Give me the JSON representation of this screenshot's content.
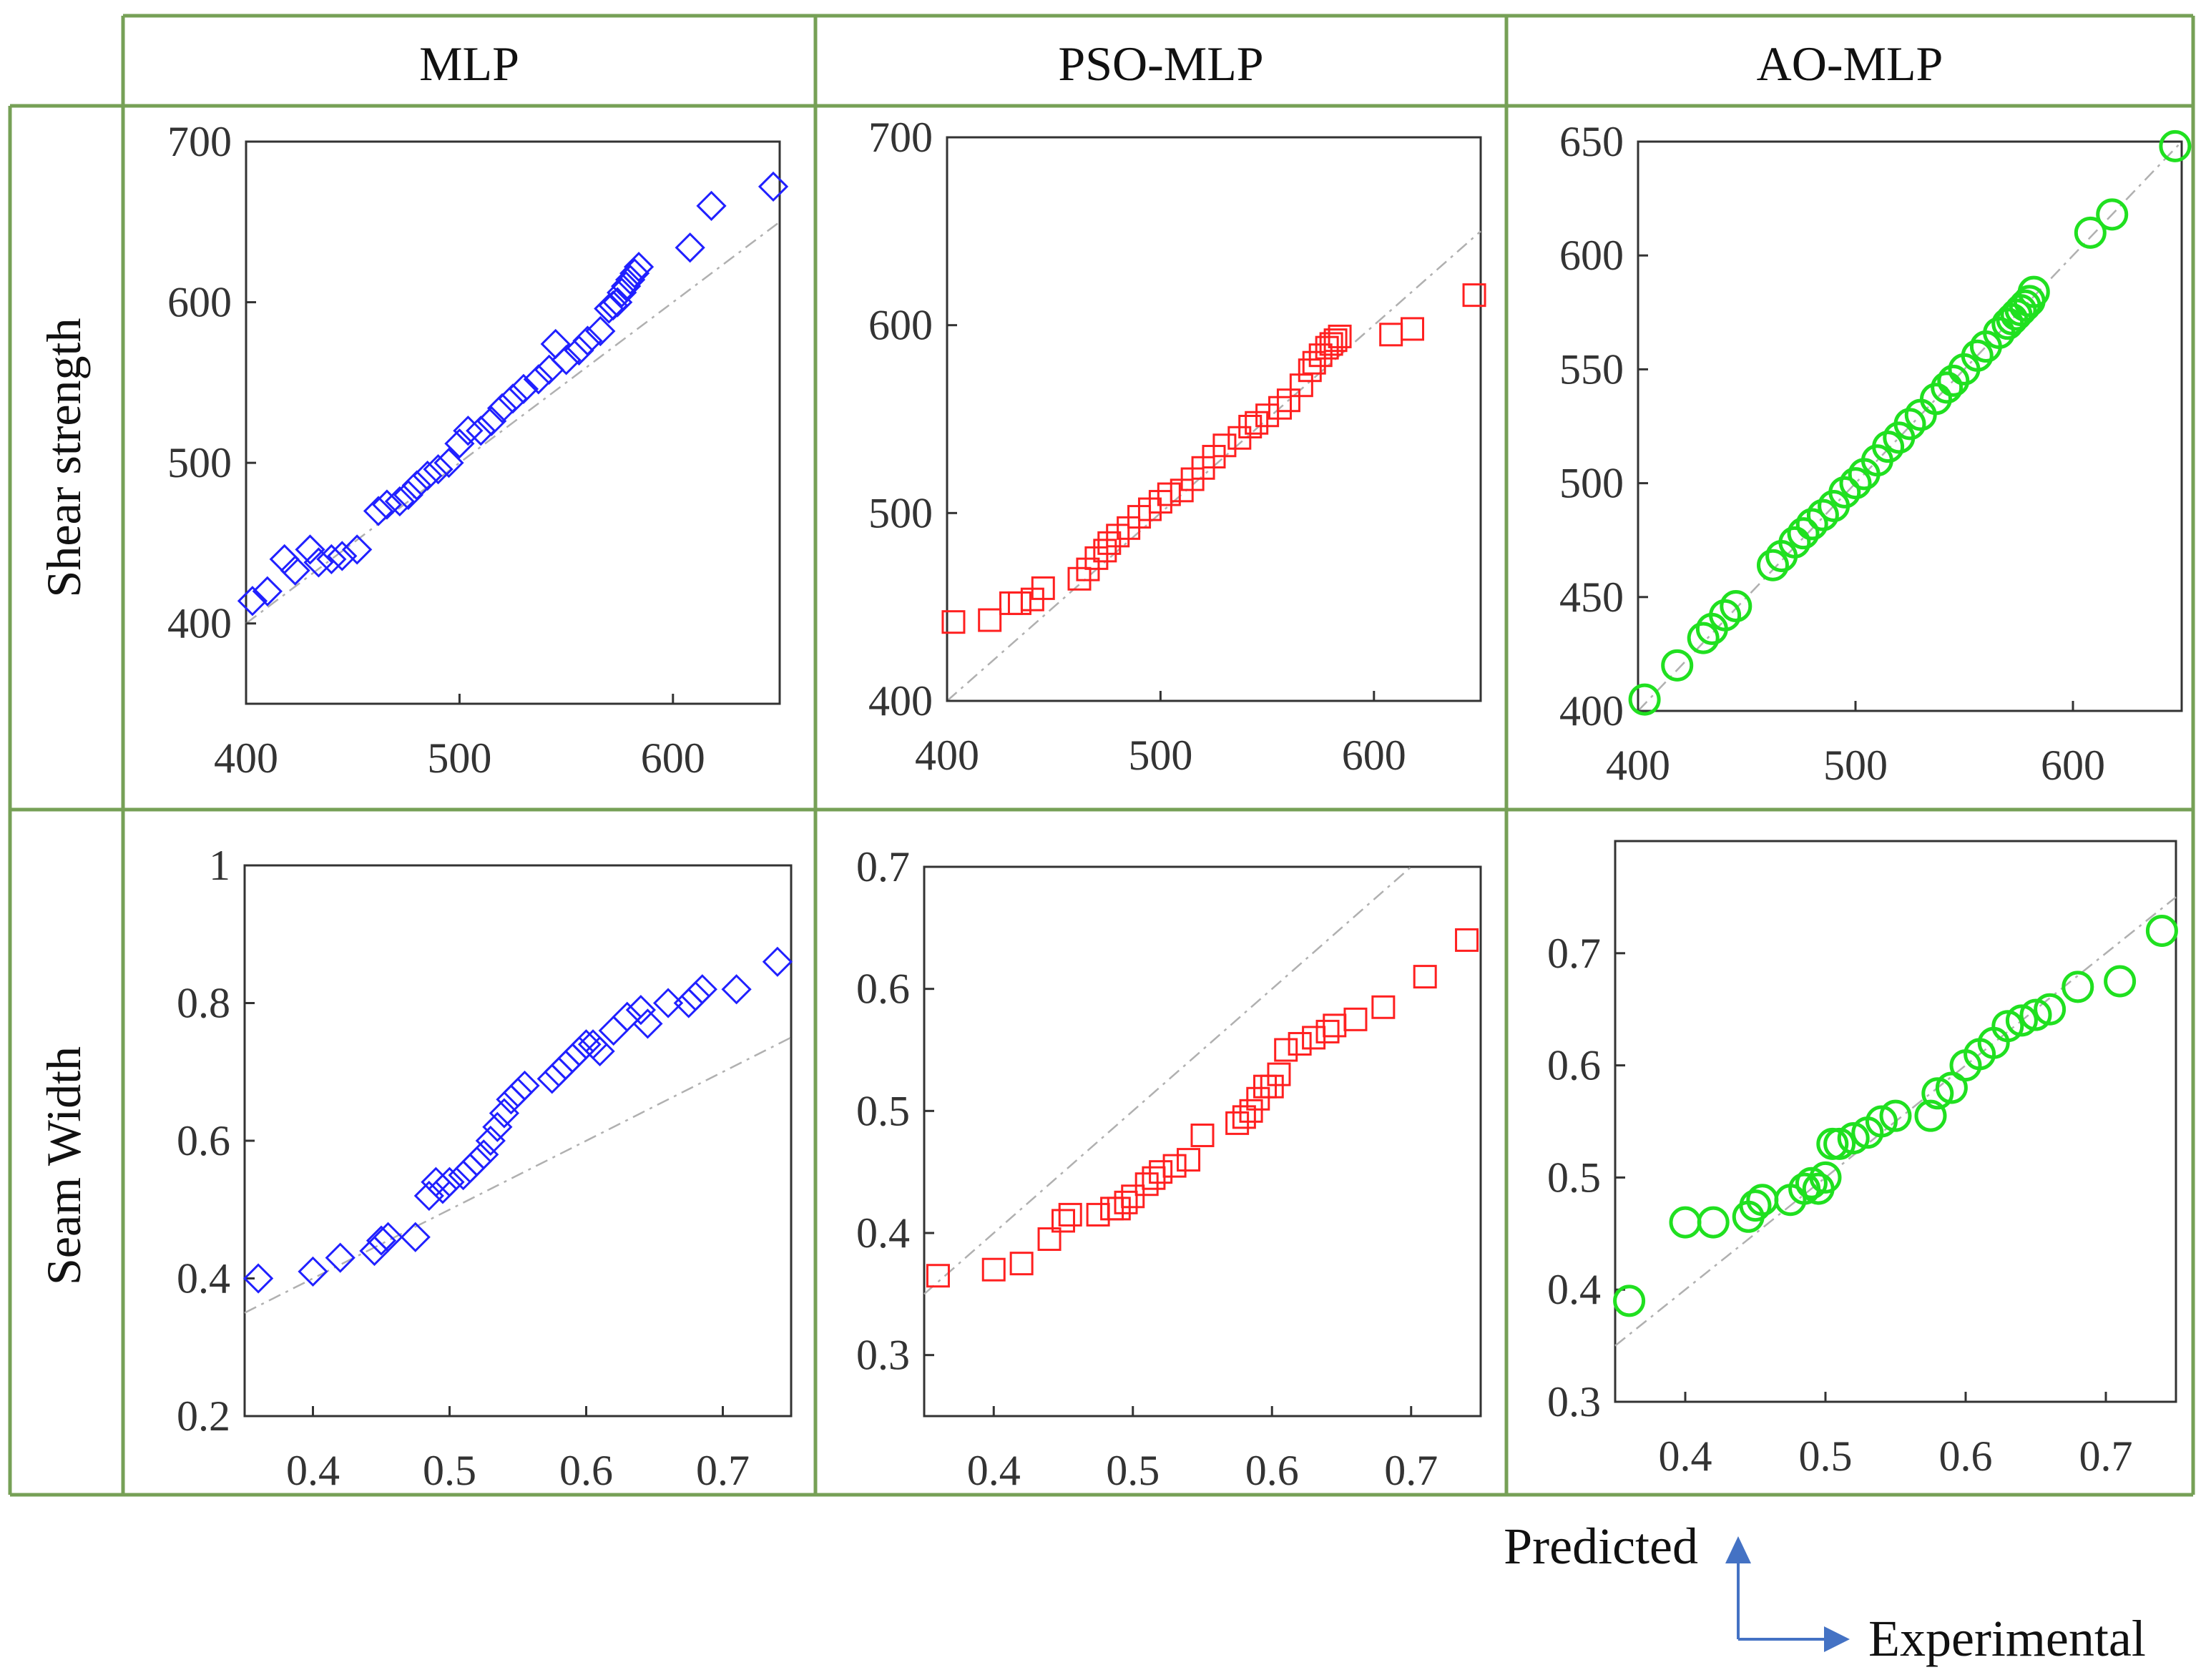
{
  "figure": {
    "columns": [
      "MLP",
      "PSO-MLP",
      "AO-MLP"
    ],
    "rows": [
      "Shear strength",
      "Seam Width"
    ],
    "legend": {
      "predicted_label": "Predicted",
      "experimental_label": "Experimental"
    },
    "colors": {
      "grid_border": "#76a056",
      "arrow": "#4472c4",
      "mlp": "#2020ff",
      "pso": "#ff2020",
      "ao": "#20e020",
      "diagonal": "#b0b0b0"
    }
  },
  "chart_data": [
    {
      "type": "scatter",
      "id": "mlp-shear",
      "title": "",
      "marker": "diamond",
      "color": "#2020ff",
      "xlim": [
        400,
        650
      ],
      "ylim": [
        350,
        700
      ],
      "xticks": [
        400,
        500,
        600
      ],
      "yticks": [
        400,
        500,
        600,
        700
      ],
      "x": [
        403,
        410,
        418,
        423,
        430,
        434,
        440,
        445,
        452,
        462,
        466,
        472,
        476,
        480,
        485,
        490,
        495,
        500,
        504,
        510,
        515,
        520,
        525,
        530,
        537,
        542,
        545,
        550,
        556,
        560,
        566,
        570,
        572,
        574,
        576,
        578,
        580,
        582,
        584,
        608,
        618,
        647
      ],
      "y": [
        414,
        420,
        440,
        433,
        446,
        438,
        440,
        442,
        446,
        470,
        474,
        476,
        480,
        486,
        492,
        496,
        500,
        512,
        520,
        520,
        526,
        534,
        540,
        546,
        552,
        558,
        574,
        564,
        570,
        576,
        582,
        596,
        598,
        600,
        606,
        610,
        614,
        618,
        622,
        634,
        660,
        672
      ]
    },
    {
      "type": "scatter",
      "id": "pso-shear",
      "title": "",
      "marker": "square",
      "color": "#ff2020",
      "xlim": [
        400,
        650
      ],
      "ylim": [
        400,
        700
      ],
      "xticks": [
        400,
        500,
        600
      ],
      "yticks": [
        400,
        500,
        600,
        700
      ],
      "x": [
        403,
        420,
        430,
        434,
        440,
        445,
        462,
        466,
        470,
        474,
        476,
        480,
        485,
        490,
        495,
        500,
        504,
        510,
        515,
        520,
        525,
        530,
        537,
        542,
        545,
        550,
        556,
        560,
        566,
        570,
        572,
        575,
        578,
        580,
        582,
        584,
        608,
        618,
        647
      ],
      "y": [
        442,
        443,
        452,
        452,
        454,
        460,
        465,
        470,
        476,
        480,
        484,
        488,
        492,
        498,
        502,
        506,
        510,
        512,
        518,
        524,
        530,
        536,
        540,
        546,
        548,
        552,
        556,
        560,
        568,
        576,
        580,
        584,
        588,
        590,
        592,
        594,
        595,
        598,
        616
      ]
    },
    {
      "type": "scatter",
      "id": "ao-shear",
      "title": "",
      "marker": "circle",
      "color": "#20e020",
      "xlim": [
        400,
        650
      ],
      "ylim": [
        400,
        650
      ],
      "xticks": [
        400,
        500,
        600
      ],
      "yticks": [
        400,
        450,
        500,
        550,
        600,
        650
      ],
      "x": [
        403,
        418,
        430,
        434,
        440,
        445,
        462,
        466,
        472,
        476,
        480,
        485,
        490,
        495,
        500,
        504,
        510,
        515,
        520,
        525,
        530,
        537,
        542,
        545,
        550,
        556,
        560,
        566,
        570,
        572,
        574,
        576,
        578,
        580,
        582,
        608,
        618,
        647
      ],
      "y": [
        405,
        420,
        432,
        436,
        442,
        446,
        464,
        468,
        474,
        478,
        482,
        486,
        490,
        496,
        500,
        504,
        510,
        516,
        520,
        526,
        530,
        537,
        542,
        545,
        550,
        556,
        560,
        566,
        570,
        572,
        574,
        576,
        578,
        580,
        584,
        610,
        618,
        648
      ]
    },
    {
      "type": "scatter",
      "id": "mlp-width",
      "title": "",
      "marker": "diamond",
      "color": "#2020ff",
      "xlim": [
        0.35,
        0.75
      ],
      "ylim": [
        0.2,
        1.0
      ],
      "xticks": [
        0.4,
        0.5,
        0.6,
        0.7
      ],
      "yticks": [
        0.2,
        0.4,
        0.6,
        0.8,
        1
      ],
      "x": [
        0.36,
        0.4,
        0.42,
        0.445,
        0.45,
        0.455,
        0.475,
        0.485,
        0.49,
        0.495,
        0.5,
        0.51,
        0.515,
        0.52,
        0.525,
        0.53,
        0.535,
        0.54,
        0.545,
        0.55,
        0.555,
        0.575,
        0.58,
        0.585,
        0.59,
        0.595,
        0.6,
        0.605,
        0.61,
        0.62,
        0.63,
        0.64,
        0.645,
        0.66,
        0.675,
        0.68,
        0.685,
        0.71,
        0.74
      ],
      "y": [
        0.4,
        0.41,
        0.43,
        0.44,
        0.455,
        0.46,
        0.46,
        0.52,
        0.54,
        0.53,
        0.54,
        0.55,
        0.56,
        0.57,
        0.58,
        0.6,
        0.62,
        0.64,
        0.66,
        0.67,
        0.68,
        0.69,
        0.7,
        0.71,
        0.72,
        0.73,
        0.74,
        0.74,
        0.73,
        0.76,
        0.78,
        0.79,
        0.77,
        0.8,
        0.8,
        0.81,
        0.82,
        0.82,
        0.86
      ]
    },
    {
      "type": "scatter",
      "id": "pso-width",
      "title": "",
      "marker": "square",
      "color": "#ff2020",
      "xlim": [
        0.35,
        0.75
      ],
      "ylim": [
        0.25,
        0.7
      ],
      "xticks": [
        0.4,
        0.5,
        0.6,
        0.7
      ],
      "yticks": [
        0.3,
        0.4,
        0.5,
        0.6,
        0.7
      ],
      "x": [
        0.36,
        0.4,
        0.42,
        0.44,
        0.45,
        0.455,
        0.475,
        0.485,
        0.49,
        0.495,
        0.5,
        0.51,
        0.515,
        0.52,
        0.53,
        0.54,
        0.55,
        0.575,
        0.58,
        0.585,
        0.59,
        0.595,
        0.6,
        0.605,
        0.61,
        0.62,
        0.63,
        0.64,
        0.645,
        0.66,
        0.68,
        0.71,
        0.74
      ],
      "y": [
        0.365,
        0.37,
        0.375,
        0.395,
        0.41,
        0.415,
        0.415,
        0.42,
        0.42,
        0.425,
        0.43,
        0.44,
        0.445,
        0.45,
        0.455,
        0.46,
        0.48,
        0.49,
        0.495,
        0.5,
        0.51,
        0.52,
        0.52,
        0.53,
        0.55,
        0.555,
        0.56,
        0.565,
        0.57,
        0.575,
        0.585,
        0.61,
        0.64
      ]
    },
    {
      "type": "scatter",
      "id": "ao-width",
      "title": "",
      "marker": "circle",
      "color": "#20e020",
      "xlim": [
        0.35,
        0.75
      ],
      "ylim": [
        0.3,
        0.8
      ],
      "xticks": [
        0.4,
        0.5,
        0.6,
        0.7
      ],
      "yticks": [
        0.3,
        0.4,
        0.5,
        0.6,
        0.7
      ],
      "x": [
        0.36,
        0.4,
        0.42,
        0.445,
        0.45,
        0.455,
        0.475,
        0.485,
        0.49,
        0.495,
        0.5,
        0.505,
        0.51,
        0.52,
        0.53,
        0.54,
        0.55,
        0.575,
        0.58,
        0.59,
        0.6,
        0.61,
        0.62,
        0.63,
        0.64,
        0.65,
        0.66,
        0.68,
        0.71,
        0.74
      ],
      "y": [
        0.39,
        0.46,
        0.46,
        0.465,
        0.475,
        0.48,
        0.48,
        0.49,
        0.495,
        0.49,
        0.5,
        0.53,
        0.53,
        0.535,
        0.54,
        0.55,
        0.555,
        0.555,
        0.575,
        0.58,
        0.6,
        0.61,
        0.62,
        0.635,
        0.64,
        0.645,
        0.65,
        0.67,
        0.675,
        0.72
      ]
    }
  ]
}
